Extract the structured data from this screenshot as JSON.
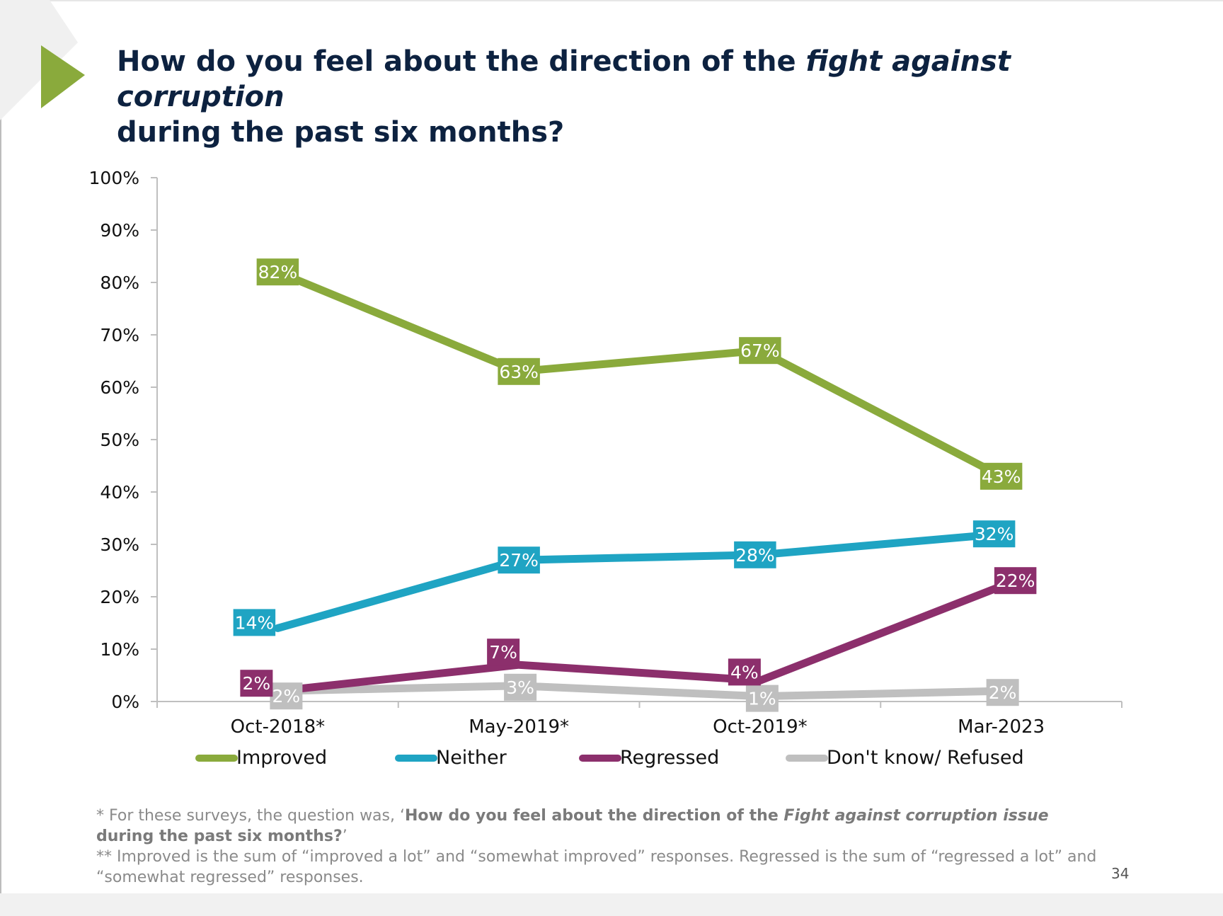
{
  "title": {
    "part1": "How do you feel about the direction of the ",
    "emphasis": "fight against corruption",
    "part2": "during the past six months?"
  },
  "chart_data": {
    "type": "line",
    "categories": [
      "Oct-2018*",
      "May-2019*",
      "Oct-2019*",
      "Mar-2023"
    ],
    "ylim": [
      0,
      100
    ],
    "yticks": [
      0,
      10,
      20,
      30,
      40,
      50,
      60,
      70,
      80,
      90,
      100
    ],
    "ytick_labels": [
      "0%",
      "10%",
      "20%",
      "30%",
      "40%",
      "50%",
      "60%",
      "70%",
      "80%",
      "90%",
      "100%"
    ],
    "grid": false,
    "legend_position": "bottom",
    "series": [
      {
        "name": "Improved",
        "color": "#8aaa3c",
        "values": [
          82,
          63,
          67,
          43
        ],
        "labels": [
          "82%",
          "63%",
          "67%",
          "43%"
        ]
      },
      {
        "name": "Neither",
        "color": "#1fa4c3",
        "values": [
          14,
          27,
          28,
          32
        ],
        "labels": [
          "14%",
          "27%",
          "28%",
          "32%"
        ]
      },
      {
        "name": "Regressed",
        "color": "#8c2f6c",
        "values": [
          2,
          7,
          4,
          22
        ],
        "labels": [
          "2%",
          "7%",
          "4%",
          "22%"
        ]
      },
      {
        "name": "Don't know/ Refused",
        "color": "#bfbfbf",
        "values": [
          2,
          3,
          1,
          2
        ],
        "labels": [
          "2%",
          "3%",
          "1%",
          "2%"
        ]
      }
    ]
  },
  "footnote": {
    "line1_prefix": "* For these surveys, the question was, ‘",
    "line1_q1": "How do you feel about the direction of the ",
    "line1_q_em": "Fight against corruption issue",
    "line1_q2": " during the past six months?",
    "line1_suffix": "’",
    "line2": "**  Improved is the sum of “improved a lot” and “somewhat improved” responses. Regressed is the sum of “regressed a lot” and “somewhat regressed” responses."
  },
  "page_number": "34"
}
